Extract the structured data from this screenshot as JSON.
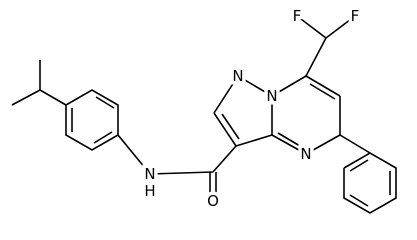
{
  "nodes": [
    {
      "label": "F"
    },
    {
      "label": "F"
    },
    {
      "label": "N"
    },
    {
      "label": "N"
    },
    {
      "label": "N"
    },
    {
      "label": "N"
    },
    {
      "label": "H"
    },
    {
      "label": "O"
    }
  ]
}
